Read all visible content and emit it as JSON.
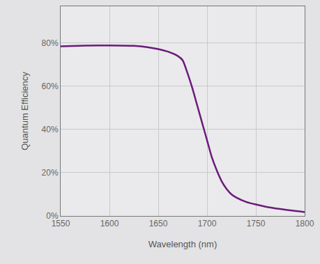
{
  "chart_data": {
    "type": "line",
    "x_label": "Wavelength (nm)",
    "y_label": "Quantum Efficiency",
    "x": [
      1550,
      1575,
      1600,
      1625,
      1640,
      1650,
      1660,
      1670,
      1675,
      1680,
      1685,
      1690,
      1695,
      1700,
      1705,
      1710,
      1715,
      1720,
      1725,
      1730,
      1740,
      1750,
      1760,
      1775,
      1790,
      1800
    ],
    "values": [
      78.5,
      78.8,
      78.9,
      78.7,
      78.0,
      77.2,
      76.0,
      74.0,
      72.0,
      66.0,
      59.0,
      51.0,
      43.0,
      35.0,
      27.0,
      21.0,
      16.0,
      12.5,
      10.0,
      8.5,
      6.5,
      5.3,
      4.3,
      3.2,
      2.3,
      1.8
    ],
    "color": "#6a1b7a",
    "xlim": [
      1550,
      1800
    ],
    "ylim": [
      0,
      97
    ],
    "xticks": [
      1550,
      1600,
      1650,
      1700,
      1750,
      1800
    ],
    "yticks": [
      {
        "value": 0,
        "label": "0%"
      },
      {
        "value": 20,
        "label": "20%"
      },
      {
        "value": 40,
        "label": "40%"
      },
      {
        "value": 60,
        "label": "60%"
      },
      {
        "value": 80,
        "label": "80%"
      }
    ],
    "grid": true
  }
}
